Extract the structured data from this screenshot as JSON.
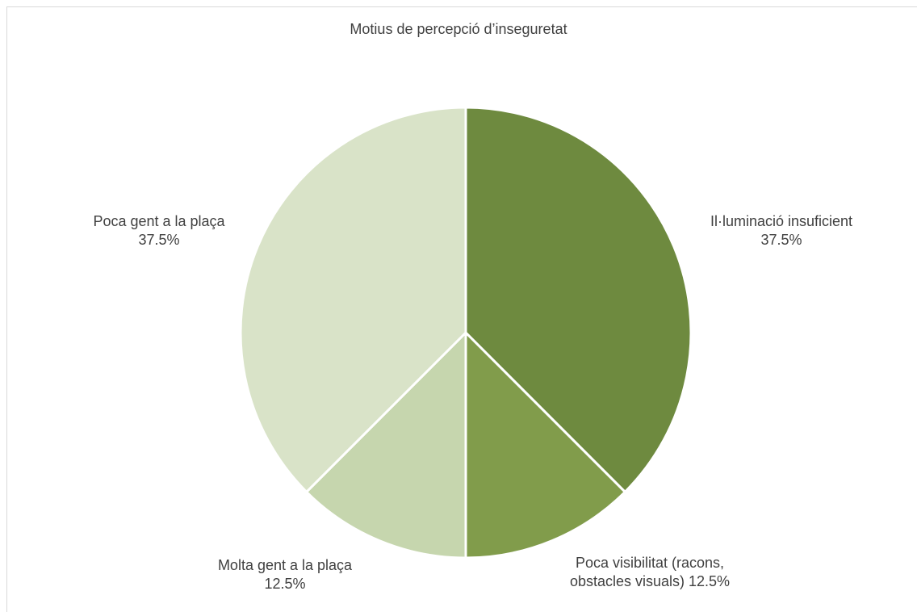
{
  "chart_data": {
    "type": "pie",
    "title": "Motius de percepció d’inseguretat",
    "slices": [
      {
        "label": "Il·luminació insuficient",
        "value": 37.5,
        "display": "37.5%",
        "color": "#6e8a3f"
      },
      {
        "label": "Poca visibilitat (racons, obstacles visuals)",
        "value": 12.5,
        "display": "12.5%",
        "color": "#819c4b"
      },
      {
        "label": "Molta gent a la plaça",
        "value": 12.5,
        "display": "12.5%",
        "color": "#c6d6ae"
      },
      {
        "label": "Poca gent a la plaça",
        "value": 37.5,
        "display": "37.5%",
        "color": "#d9e3c8"
      }
    ],
    "start_angle_deg": 0,
    "direction": "clockwise",
    "legend": "none",
    "data_labels": "outside, category name and percentage"
  }
}
